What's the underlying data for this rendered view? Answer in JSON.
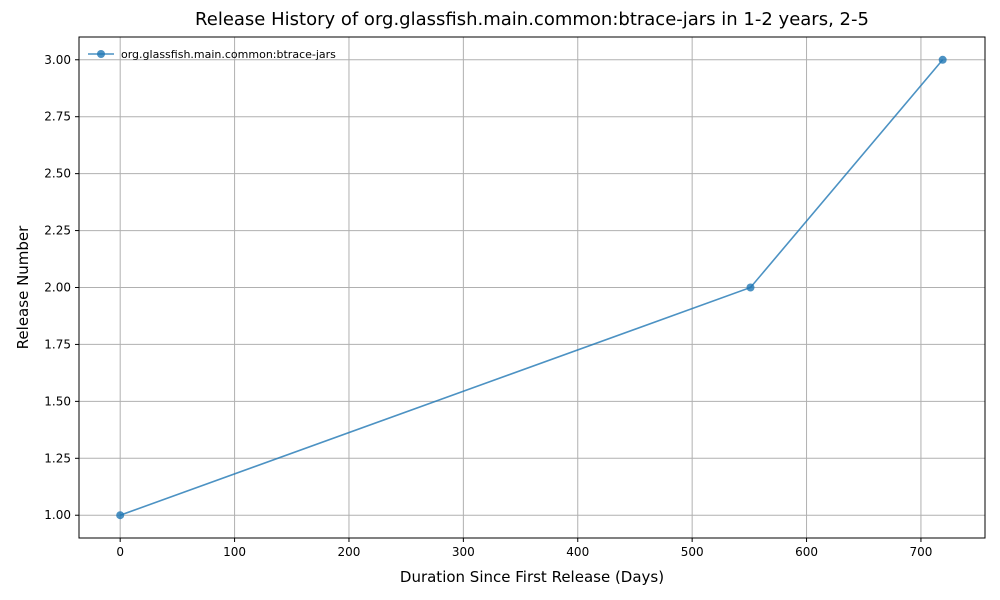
{
  "chart_data": {
    "type": "line",
    "title": "Release History of org.glassfish.main.common:btrace-jars in 1-2 years, 2-5",
    "xlabel": "Duration Since First Release (Days)",
    "ylabel": "Release Number",
    "xlim": [
      -36,
      756
    ],
    "ylim": [
      0.9,
      3.1
    ],
    "xticks": [
      0,
      100,
      200,
      300,
      400,
      500,
      600,
      700
    ],
    "yticks": [
      1.0,
      1.25,
      1.5,
      1.75,
      2.0,
      2.25,
      2.5,
      2.75,
      3.0
    ],
    "ytick_labels": [
      "1.00",
      "1.25",
      "1.50",
      "1.75",
      "2.00",
      "2.25",
      "2.50",
      "2.75",
      "3.00"
    ],
    "grid": true,
    "legend_position": "top-left",
    "series": [
      {
        "name": "org.glassfish.main.common:btrace-jars",
        "color": "#1f77b4",
        "marker": "circle",
        "x": [
          0,
          551,
          719
        ],
        "y": [
          1,
          2,
          3
        ]
      }
    ]
  }
}
